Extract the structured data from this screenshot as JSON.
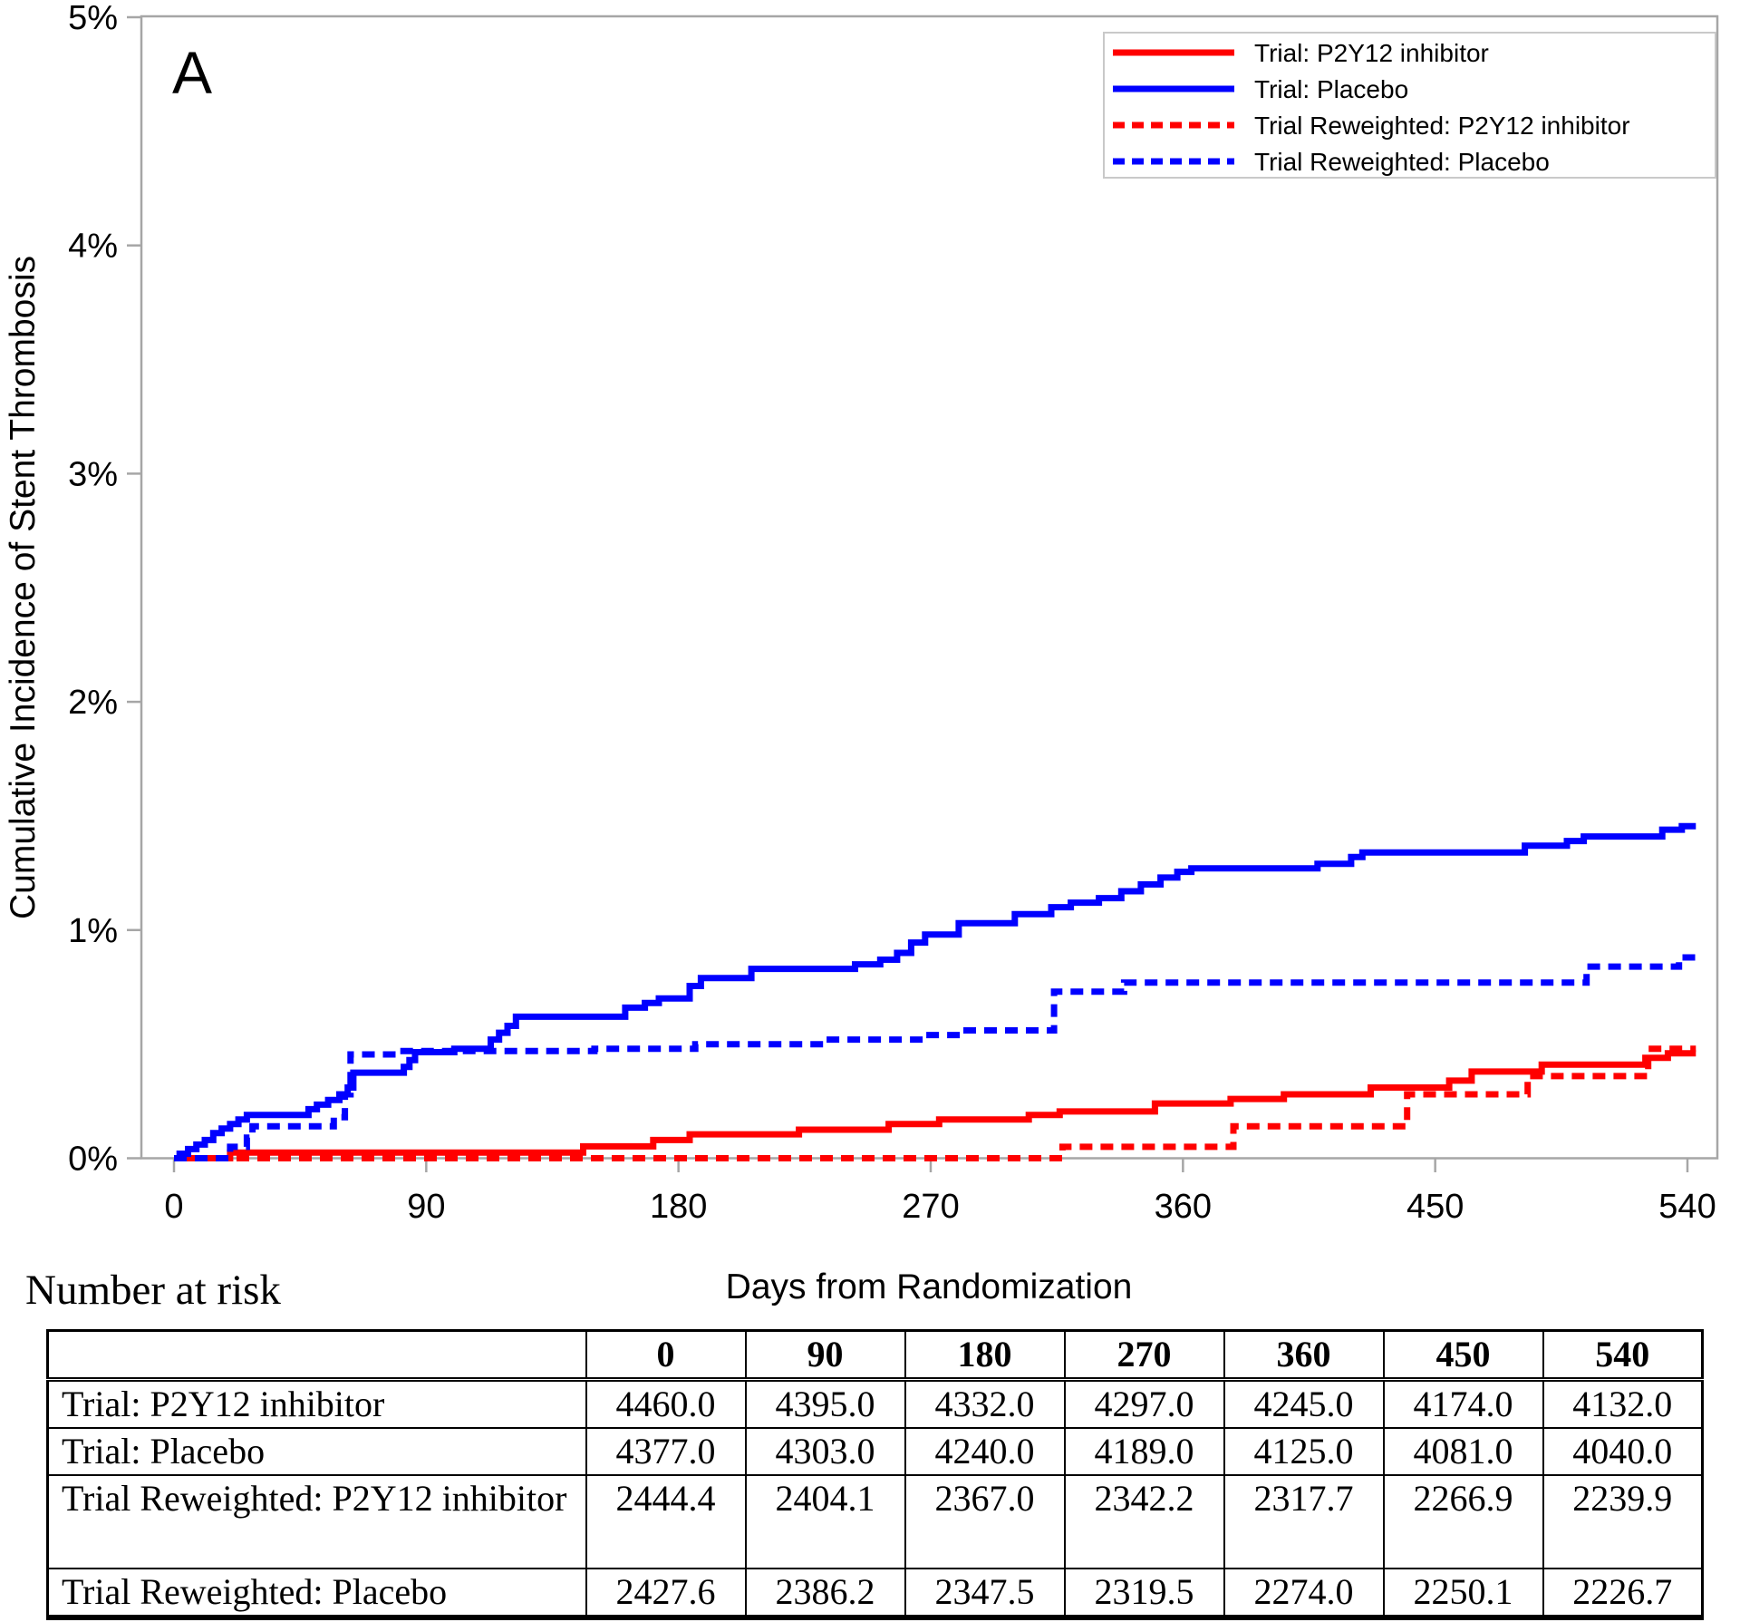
{
  "panel_label": "A",
  "chart_data": {
    "type": "line",
    "variant": "step",
    "title": "",
    "xlabel": "Days from Randomization",
    "ylabel": "Cumulative Incidence of Stent Thrombosis",
    "xlim": [
      0,
      540
    ],
    "ylim_percent": [
      0,
      5
    ],
    "grid": "off",
    "legend_position": "top-right",
    "x_ticks": [
      0,
      90,
      180,
      270,
      360,
      450,
      540
    ],
    "y_tick_labels": [
      "0%",
      "1%",
      "2%",
      "3%",
      "4%",
      "5%"
    ],
    "y_tick_values": [
      0,
      1,
      2,
      3,
      4,
      5
    ],
    "series": [
      {
        "name": "Trial: P2Y12 inhibitor",
        "color": "#ff0000",
        "line_style": "solid",
        "points": [
          [
            0,
            0
          ],
          [
            20,
            0.025
          ],
          [
            146,
            0.052
          ],
          [
            171,
            0.08
          ],
          [
            184,
            0.105
          ],
          [
            223,
            0.125
          ],
          [
            255,
            0.15
          ],
          [
            273,
            0.17
          ],
          [
            305,
            0.19
          ],
          [
            316,
            0.205
          ],
          [
            350,
            0.24
          ],
          [
            377,
            0.26
          ],
          [
            396,
            0.28
          ],
          [
            427,
            0.31
          ],
          [
            455,
            0.34
          ],
          [
            463,
            0.38
          ],
          [
            488,
            0.41
          ],
          [
            525,
            0.44
          ],
          [
            533,
            0.46
          ],
          [
            543,
            0.46
          ]
        ]
      },
      {
        "name": "Trial: Placebo",
        "color": "#0000ff",
        "line_style": "solid",
        "points": [
          [
            0,
            0
          ],
          [
            2,
            0.02
          ],
          [
            5,
            0.04
          ],
          [
            8,
            0.06
          ],
          [
            11,
            0.08
          ],
          [
            14,
            0.11
          ],
          [
            17,
            0.13
          ],
          [
            20,
            0.15
          ],
          [
            23,
            0.17
          ],
          [
            26,
            0.19
          ],
          [
            48,
            0.215
          ],
          [
            51,
            0.235
          ],
          [
            55,
            0.255
          ],
          [
            59,
            0.28
          ],
          [
            62,
            0.31
          ],
          [
            64,
            0.375
          ],
          [
            82,
            0.4
          ],
          [
            84,
            0.43
          ],
          [
            86,
            0.465
          ],
          [
            100,
            0.48
          ],
          [
            113,
            0.52
          ],
          [
            116,
            0.55
          ],
          [
            119,
            0.58
          ],
          [
            122,
            0.62
          ],
          [
            161,
            0.66
          ],
          [
            168,
            0.68
          ],
          [
            173,
            0.7
          ],
          [
            184,
            0.755
          ],
          [
            188,
            0.79
          ],
          [
            206,
            0.83
          ],
          [
            243,
            0.85
          ],
          [
            252,
            0.87
          ],
          [
            258,
            0.9
          ],
          [
            263,
            0.945
          ],
          [
            268,
            0.98
          ],
          [
            280,
            1.03
          ],
          [
            300,
            1.07
          ],
          [
            313,
            1.1
          ],
          [
            320,
            1.12
          ],
          [
            330,
            1.14
          ],
          [
            338,
            1.17
          ],
          [
            345,
            1.2
          ],
          [
            352,
            1.23
          ],
          [
            358,
            1.255
          ],
          [
            363,
            1.27
          ],
          [
            408,
            1.29
          ],
          [
            420,
            1.32
          ],
          [
            424,
            1.34
          ],
          [
            482,
            1.37
          ],
          [
            497,
            1.39
          ],
          [
            503,
            1.41
          ],
          [
            531,
            1.44
          ],
          [
            538,
            1.455
          ],
          [
            543,
            1.455
          ]
        ]
      },
      {
        "name": "Trial Reweighted: P2Y12 inhibitor",
        "color": "#ff0000",
        "line_style": "dashed",
        "points": [
          [
            0,
            0
          ],
          [
            317,
            0.05
          ],
          [
            378,
            0.14
          ],
          [
            440,
            0.28
          ],
          [
            483,
            0.36
          ],
          [
            526,
            0.48
          ],
          [
            543,
            0.48
          ]
        ]
      },
      {
        "name": "Trial Reweighted: Placebo",
        "color": "#0000ff",
        "line_style": "dashed",
        "points": [
          [
            0,
            0
          ],
          [
            20,
            0.05
          ],
          [
            26,
            0.09
          ],
          [
            28,
            0.14
          ],
          [
            57,
            0.18
          ],
          [
            61,
            0.28
          ],
          [
            63,
            0.455
          ],
          [
            80,
            0.47
          ],
          [
            150,
            0.48
          ],
          [
            186,
            0.5
          ],
          [
            232,
            0.52
          ],
          [
            268,
            0.54
          ],
          [
            281,
            0.56
          ],
          [
            314,
            0.73
          ],
          [
            339,
            0.77
          ],
          [
            504,
            0.84
          ],
          [
            537,
            0.88
          ],
          [
            543,
            0.88
          ]
        ]
      }
    ]
  },
  "risk_table": {
    "title": "Number at risk",
    "columns": [
      "0",
      "90",
      "180",
      "270",
      "360",
      "450",
      "540"
    ],
    "rows": [
      {
        "label": "Trial: P2Y12 inhibitor",
        "values": [
          "4460.0",
          "4395.0",
          "4332.0",
          "4297.0",
          "4245.0",
          "4174.0",
          "4132.0"
        ]
      },
      {
        "label": "Trial: Placebo",
        "values": [
          "4377.0",
          "4303.0",
          "4240.0",
          "4189.0",
          "4125.0",
          "4081.0",
          "4040.0"
        ]
      },
      {
        "label": "Trial Reweighted: P2Y12 inhibitor",
        "values": [
          "2444.4",
          "2404.1",
          "2367.0",
          "2342.2",
          "2317.7",
          "2266.9",
          "2239.9"
        ]
      },
      {
        "label": "Trial Reweighted: Placebo",
        "values": [
          "2427.6",
          "2386.2",
          "2347.5",
          "2319.5",
          "2274.0",
          "2250.1",
          "2226.7"
        ]
      }
    ]
  },
  "style": {
    "axis_color": "#a6a6a6",
    "legend_border_color": "#c9c9c9",
    "curve_width": 7
  }
}
